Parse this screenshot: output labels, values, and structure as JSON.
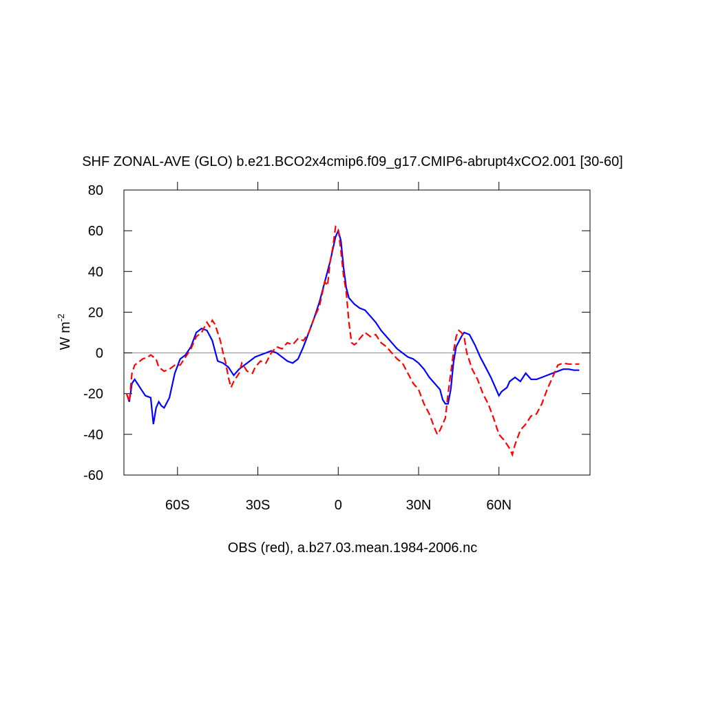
{
  "chart_data": {
    "type": "line",
    "title": "SHF ZONAL-AVE (GLO) b.e21.BCO2x4cmip6.f09_g17.CMIP6-abrupt4xCO2.001 [30-60]",
    "x_label": "OBS (red), a.b27.03.mean.1984-2006.nc",
    "y_label": "W m",
    "y_label_sup": "-2",
    "xlim": [
      -80,
      94
    ],
    "xticks": [
      {
        "value": -60,
        "label": "60S"
      },
      {
        "value": -30,
        "label": "30S"
      },
      0,
      {
        "value": 30,
        "label": "30N"
      },
      {
        "value": 60,
        "label": "60N"
      }
    ],
    "ylim": [
      -60,
      80
    ],
    "yticks": [
      -60,
      -40,
      -20,
      0,
      20,
      40,
      60,
      80
    ],
    "series": [
      {
        "color": "#0000ff",
        "dashed": false,
        "x": [
          -79,
          -78,
          -77,
          -76,
          -74,
          -72,
          -70,
          -69,
          -68,
          -67,
          -66,
          -65,
          -63,
          -61,
          -59,
          -57,
          -55,
          -53,
          -51,
          -49,
          -47,
          -45,
          -43,
          -41,
          -39,
          -37,
          -35,
          -33,
          -31,
          -29,
          -27,
          -25,
          -23,
          -21,
          -19,
          -17,
          -15,
          -13,
          -11,
          -9,
          -7,
          -5,
          -3,
          -1,
          0,
          1,
          2,
          3,
          4,
          6,
          8,
          10,
          12,
          14,
          16,
          18,
          20,
          22,
          24,
          26,
          28,
          30,
          32,
          34,
          36,
          38,
          39,
          40,
          41,
          42,
          43,
          44,
          46,
          47,
          49,
          51,
          53,
          55,
          57,
          59,
          60,
          61,
          63,
          64,
          66,
          68,
          70,
          72,
          74,
          76,
          78,
          80,
          82,
          84,
          86,
          88,
          90
        ],
        "values": [
          -20,
          -24,
          -15,
          -13,
          -17,
          -21,
          -22,
          -35,
          -27,
          -24,
          -26,
          -27,
          -22,
          -10,
          -3,
          -1,
          3,
          10,
          12,
          11,
          6,
          -4,
          -5,
          -7,
          -11,
          -8,
          -6,
          -4,
          -2,
          -1,
          0,
          1,
          0,
          -2,
          -4,
          -5,
          -3,
          3,
          10,
          17,
          25,
          35,
          45,
          57,
          60,
          55,
          42,
          32,
          27,
          24,
          22,
          21,
          18,
          15,
          11,
          8,
          5,
          2,
          0,
          -2,
          -3,
          -5,
          -8,
          -12,
          -15,
          -18,
          -23,
          -25,
          -25,
          -18,
          -5,
          3,
          8,
          10,
          9,
          4,
          -2,
          -7,
          -12,
          -18,
          -21,
          -19,
          -17,
          -14,
          -12,
          -14,
          -10,
          -13,
          -13,
          -12,
          -11,
          -10,
          -9,
          -8,
          -8,
          -8.5,
          -8.5
        ]
      },
      {
        "color": "#ff0000",
        "dashed": true,
        "x": [
          -79,
          -78,
          -77,
          -76,
          -75,
          -73,
          -71,
          -70,
          -68,
          -67,
          -65,
          -63,
          -61,
          -59,
          -57,
          -55,
          -53,
          -51,
          -49,
          -48,
          -47,
          -46,
          -45,
          -44,
          -43,
          -42,
          -41,
          -40,
          -39,
          -37,
          -36,
          -34,
          -32,
          -31,
          -29,
          -27,
          -25,
          -23,
          -21,
          -19,
          -17,
          -15,
          -13,
          -11,
          -9,
          -7,
          -5,
          -4,
          -3,
          -2,
          -1,
          0,
          1,
          2,
          3,
          4,
          5,
          6,
          7,
          8,
          10,
          12,
          14,
          16,
          18,
          20,
          22,
          24,
          26,
          28,
          30,
          32,
          34,
          36,
          37,
          38,
          40,
          41,
          42,
          43,
          44,
          45,
          46,
          47,
          48,
          50,
          52,
          54,
          56,
          58,
          60,
          62,
          64,
          65,
          66,
          68,
          70,
          72,
          74,
          76,
          78,
          80,
          82,
          84,
          86,
          88,
          90
        ],
        "values": [
          -20,
          -24,
          -10,
          -6,
          -5,
          -3,
          -2,
          -1,
          -3,
          -7,
          -9,
          -8,
          -6,
          -6,
          -2,
          2,
          8,
          10,
          15,
          13,
          16,
          14,
          10,
          6,
          0,
          -5,
          -12,
          -17,
          -14,
          -10,
          -5,
          -9,
          -10,
          -7,
          -4,
          -5,
          0,
          3,
          2,
          5,
          4,
          7,
          6,
          10,
          17,
          23,
          35,
          33,
          45,
          52,
          62,
          61,
          50,
          38,
          30,
          15,
          5,
          4,
          5,
          7,
          10,
          8,
          9,
          5,
          3,
          0,
          -3,
          -5,
          -10,
          -15,
          -18,
          -25,
          -30,
          -37,
          -40,
          -38,
          -32,
          -20,
          -10,
          0,
          8,
          11,
          10,
          8,
          0,
          -8,
          -13,
          -20,
          -25,
          -32,
          -40,
          -43,
          -47,
          -50,
          -45,
          -38,
          -35,
          -31,
          -30,
          -25,
          -18,
          -12,
          -6,
          -5,
          -5.5,
          -5.5,
          -5.5
        ]
      }
    ]
  }
}
